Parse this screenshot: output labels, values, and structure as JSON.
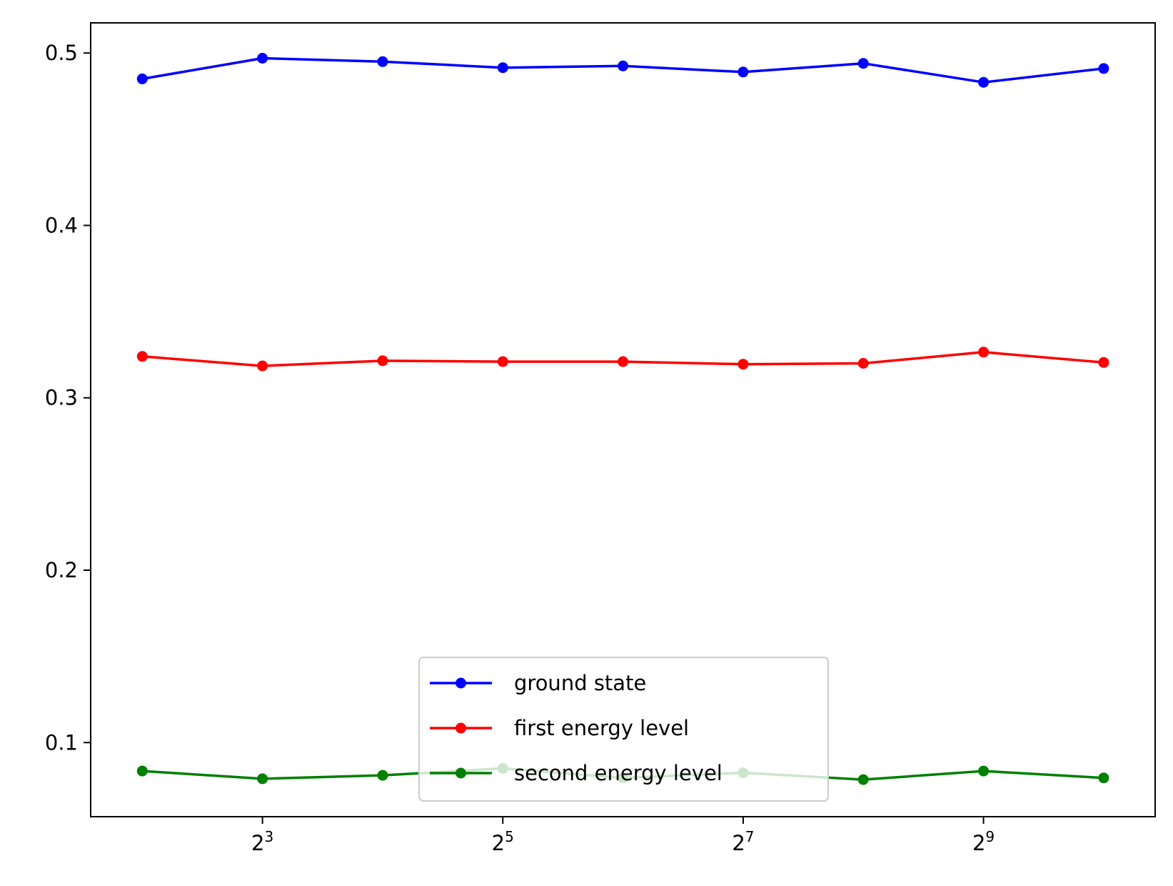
{
  "chart_data": {
    "type": "line",
    "title": "",
    "xlabel": "",
    "ylabel": "",
    "x_scale": "log2",
    "x": [
      4,
      8,
      16,
      32,
      64,
      128,
      256,
      512,
      1024
    ],
    "x_ticks": [
      {
        "value": 8,
        "base": "2",
        "exp": "3"
      },
      {
        "value": 32,
        "base": "2",
        "exp": "5"
      },
      {
        "value": 128,
        "base": "2",
        "exp": "7"
      },
      {
        "value": 512,
        "base": "2",
        "exp": "9"
      }
    ],
    "xlim": [
      2.97,
      1378
    ],
    "ylim": [
      0.057,
      0.5175
    ],
    "y_ticks": [
      {
        "value": 0.1,
        "label": "0.1"
      },
      {
        "value": 0.2,
        "label": "0.2"
      },
      {
        "value": 0.3,
        "label": "0.3"
      },
      {
        "value": 0.4,
        "label": "0.4"
      },
      {
        "value": 0.5,
        "label": "0.5"
      }
    ],
    "grid": false,
    "legend_position": "lower-center",
    "series": [
      {
        "name": "ground state",
        "color": "#0000ff",
        "marker": "dot",
        "values": [
          0.485,
          0.497,
          0.495,
          0.4915,
          0.4925,
          0.489,
          0.494,
          0.483,
          0.491
        ]
      },
      {
        "name": "first energy level",
        "color": "#ff0000",
        "marker": "dot",
        "values": [
          0.324,
          0.3185,
          0.3215,
          0.321,
          0.321,
          0.3195,
          0.32,
          0.3265,
          0.3205
        ]
      },
      {
        "name": "second energy level",
        "color": "#008000",
        "marker": "dot",
        "values": [
          0.0835,
          0.079,
          0.081,
          0.085,
          0.0795,
          0.0825,
          0.0785,
          0.0835,
          0.0795
        ]
      }
    ]
  }
}
